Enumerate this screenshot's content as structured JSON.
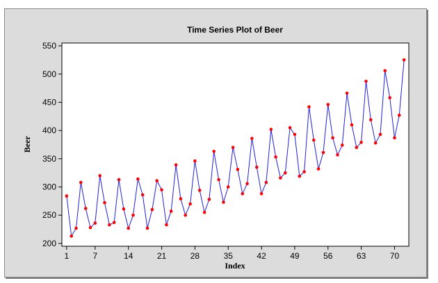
{
  "chart_data": {
    "type": "line",
    "title": "Time Series Plot of Beer",
    "xlabel": "Index",
    "ylabel": "Beer",
    "xlim": [
      0,
      73
    ],
    "ylim": [
      195,
      555
    ],
    "x_ticks": [
      1,
      7,
      14,
      21,
      28,
      35,
      42,
      49,
      56,
      63,
      70
    ],
    "y_ticks": [
      200,
      250,
      300,
      350,
      400,
      450,
      500,
      550
    ],
    "grid": false,
    "line_color": "#1f1fe0",
    "marker_color": "#ff0000",
    "series": [
      {
        "x": [
          1,
          2,
          3,
          4,
          5,
          6,
          7,
          8,
          9,
          10,
          11,
          12,
          13,
          14,
          15,
          16,
          17,
          18,
          19,
          20,
          21,
          22,
          23,
          24,
          25,
          26,
          27,
          28,
          29,
          30,
          31,
          32,
          33,
          34,
          35,
          36,
          37,
          38,
          39,
          40,
          41,
          42,
          43,
          44,
          45,
          46,
          47,
          48,
          49,
          50,
          51,
          52,
          53,
          54,
          55,
          56,
          57,
          58,
          59,
          60,
          61,
          62,
          63,
          64,
          65,
          66,
          67,
          68,
          69,
          70,
          71,
          72
        ],
        "values": [
          284,
          213,
          227,
          308,
          262,
          228,
          236,
          320,
          272,
          233,
          237,
          313,
          261,
          227,
          250,
          314,
          286,
          227,
          260,
          311,
          295,
          233,
          257,
          339,
          279,
          250,
          270,
          346,
          294,
          255,
          278,
          363,
          313,
          273,
          300,
          370,
          331,
          288,
          306,
          386,
          335,
          288,
          308,
          402,
          353,
          316,
          325,
          405,
          393,
          319,
          327,
          442,
          383,
          332,
          361,
          446,
          387,
          357,
          374,
          466,
          410,
          370,
          379,
          487,
          419,
          378,
          393,
          506,
          458,
          387,
          427,
          525
        ]
      }
    ]
  }
}
